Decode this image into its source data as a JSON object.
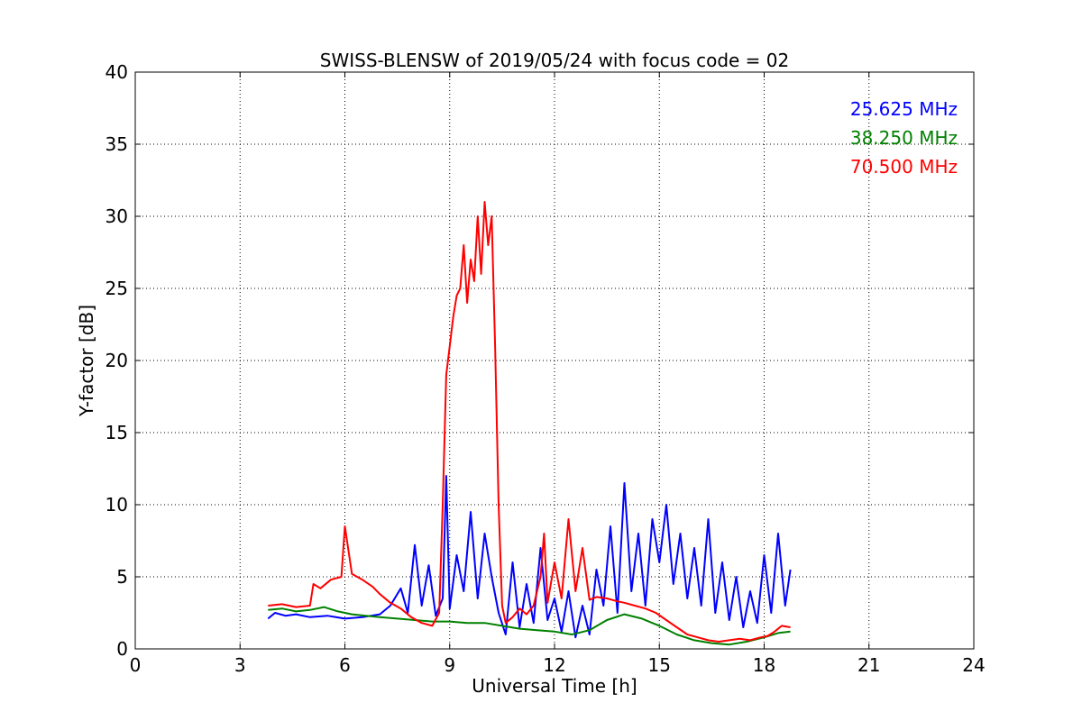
{
  "chart_data": {
    "type": "line",
    "title": "SWISS-BLENSW of 2019/05/24 with focus code = 02",
    "xlabel": "Universal Time [h]",
    "ylabel": "Y-factor [dB]",
    "xlim": [
      0,
      24
    ],
    "ylim": [
      0,
      40
    ],
    "xticks": [
      0,
      3,
      6,
      9,
      12,
      15,
      18,
      21,
      24
    ],
    "yticks": [
      0,
      5,
      10,
      15,
      20,
      25,
      30,
      35,
      40
    ],
    "grid": true,
    "legend_position": "top-right",
    "series": [
      {
        "name": "25.625 MHz",
        "color": "#0000ff",
        "x": [
          3.8,
          4.0,
          4.3,
          4.6,
          5.0,
          5.5,
          6.0,
          6.5,
          7.0,
          7.3,
          7.6,
          7.8,
          8.0,
          8.2,
          8.4,
          8.6,
          8.8,
          8.9,
          9.0,
          9.2,
          9.4,
          9.6,
          9.8,
          10.0,
          10.2,
          10.4,
          10.6,
          10.8,
          11.0,
          11.2,
          11.4,
          11.6,
          11.8,
          12.0,
          12.2,
          12.4,
          12.6,
          12.8,
          13.0,
          13.2,
          13.4,
          13.6,
          13.8,
          14.0,
          14.2,
          14.4,
          14.6,
          14.8,
          15.0,
          15.2,
          15.4,
          15.6,
          15.8,
          16.0,
          16.2,
          16.4,
          16.6,
          16.8,
          17.0,
          17.2,
          17.4,
          17.6,
          17.8,
          18.0,
          18.2,
          18.4,
          18.6,
          18.75
        ],
        "y": [
          2.1,
          2.5,
          2.3,
          2.4,
          2.2,
          2.3,
          2.1,
          2.2,
          2.4,
          3.0,
          4.2,
          2.5,
          7.2,
          3.0,
          5.8,
          2.3,
          3.5,
          12.0,
          2.8,
          6.5,
          4.0,
          9.5,
          3.5,
          8.0,
          5.0,
          2.5,
          1.0,
          6.0,
          1.5,
          4.5,
          1.8,
          7.0,
          2.0,
          3.5,
          1.2,
          4.0,
          0.8,
          3.0,
          1.0,
          5.5,
          3.0,
          8.5,
          2.5,
          11.5,
          4.0,
          8.0,
          3.0,
          9.0,
          6.0,
          10.0,
          4.5,
          8.0,
          3.5,
          7.0,
          3.0,
          9.0,
          2.5,
          6.0,
          2.0,
          5.0,
          1.5,
          4.0,
          1.8,
          6.5,
          2.5,
          8.0,
          3.0,
          5.5
        ]
      },
      {
        "name": "38.250 MHz",
        "color": "#008000",
        "x": [
          3.8,
          4.2,
          4.6,
          5.0,
          5.4,
          5.8,
          6.2,
          6.6,
          7.0,
          7.5,
          8.0,
          8.5,
          9.0,
          9.5,
          10.0,
          10.5,
          11.0,
          11.5,
          12.0,
          12.5,
          13.0,
          13.5,
          14.0,
          14.5,
          15.0,
          15.5,
          16.0,
          16.5,
          17.0,
          17.5,
          18.0,
          18.4,
          18.75
        ],
        "y": [
          2.7,
          2.8,
          2.6,
          2.7,
          2.9,
          2.6,
          2.4,
          2.3,
          2.2,
          2.1,
          2.0,
          1.9,
          1.9,
          1.8,
          1.8,
          1.6,
          1.4,
          1.3,
          1.2,
          1.0,
          1.3,
          2.0,
          2.4,
          2.1,
          1.6,
          1.0,
          0.6,
          0.4,
          0.3,
          0.5,
          0.8,
          1.1,
          1.2
        ]
      },
      {
        "name": "70.500 MHz",
        "color": "#ff0000",
        "x": [
          3.8,
          4.2,
          4.6,
          5.0,
          5.1,
          5.3,
          5.6,
          5.9,
          6.0,
          6.2,
          6.5,
          6.8,
          7.0,
          7.3,
          7.6,
          7.9,
          8.2,
          8.5,
          8.7,
          8.8,
          8.9,
          9.0,
          9.1,
          9.2,
          9.3,
          9.4,
          9.5,
          9.6,
          9.7,
          9.8,
          9.9,
          10.0,
          10.1,
          10.2,
          10.3,
          10.4,
          10.5,
          10.6,
          10.8,
          11.0,
          11.2,
          11.4,
          11.6,
          11.7,
          11.8,
          12.0,
          12.2,
          12.4,
          12.6,
          12.8,
          13.0,
          13.2,
          13.5,
          13.8,
          14.0,
          14.3,
          14.6,
          14.9,
          15.2,
          15.5,
          15.8,
          16.1,
          16.4,
          16.7,
          17.0,
          17.3,
          17.6,
          17.9,
          18.1,
          18.3,
          18.5,
          18.75
        ],
        "y": [
          3.0,
          3.1,
          2.9,
          3.0,
          4.5,
          4.2,
          4.8,
          5.0,
          8.5,
          5.2,
          4.8,
          4.3,
          3.8,
          3.2,
          2.8,
          2.2,
          1.8,
          1.6,
          2.5,
          10.0,
          19.0,
          21.0,
          23.0,
          24.5,
          25.0,
          28.0,
          24.0,
          27.0,
          25.5,
          30.0,
          26.0,
          31.0,
          28.0,
          30.0,
          21.0,
          10.0,
          3.0,
          1.8,
          2.2,
          2.8,
          2.4,
          3.0,
          5.0,
          8.0,
          3.2,
          6.0,
          3.5,
          9.0,
          4.0,
          7.0,
          3.4,
          3.6,
          3.5,
          3.3,
          3.2,
          3.0,
          2.8,
          2.5,
          2.0,
          1.5,
          1.0,
          0.8,
          0.6,
          0.5,
          0.6,
          0.7,
          0.6,
          0.8,
          0.9,
          1.2,
          1.6,
          1.5
        ]
      }
    ]
  }
}
